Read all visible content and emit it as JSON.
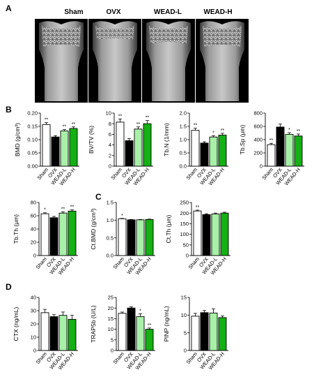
{
  "panels": {
    "A": "A",
    "B": "B",
    "C": "C",
    "D": "D"
  },
  "ct_labels": [
    "Sham",
    "OVX",
    "WEAD-L",
    "WEAD-H"
  ],
  "colors": {
    "Sham": "#ffffff",
    "OVX": "#000000",
    "WEAD-L": "#a8f0a8",
    "WEAD-H": "#14b014"
  },
  "chart_data": [
    {
      "id": "bmd",
      "panel": "B",
      "type": "bar",
      "ylabel": "BMD (g/cm³)",
      "categories": [
        "Sham",
        "OVX",
        "WEAD-L",
        "WEAD-H"
      ],
      "values": [
        0.157,
        0.11,
        0.133,
        0.142
      ],
      "errors": [
        0.007,
        0.005,
        0.005,
        0.006
      ],
      "ylim": [
        0,
        0.2
      ],
      "yticks": [
        "0.00",
        "0.05",
        "0.10",
        "0.15",
        "0.20"
      ],
      "stars": [
        "**",
        "",
        "**",
        "**"
      ]
    },
    {
      "id": "bvtv",
      "panel": "B",
      "type": "bar",
      "ylabel": "BV/TV (%)",
      "categories": [
        "Sham",
        "OVX",
        "WEAD-L",
        "WEAD-H"
      ],
      "values": [
        8.3,
        4.8,
        7.0,
        8.0
      ],
      "errors": [
        0.6,
        0.4,
        0.4,
        0.6
      ],
      "ylim": [
        0,
        10
      ],
      "yticks": [
        "0",
        "2",
        "4",
        "6",
        "8",
        "10"
      ],
      "stars": [
        "**",
        "",
        "**",
        "**"
      ]
    },
    {
      "id": "tbn",
      "panel": "B",
      "type": "bar",
      "ylabel": "Tb.N (1/mm)",
      "categories": [
        "Sham",
        "OVX",
        "WEAD-L",
        "WEAD-H"
      ],
      "values": [
        1.35,
        0.87,
        1.1,
        1.17
      ],
      "errors": [
        0.08,
        0.05,
        0.05,
        0.07
      ],
      "ylim": [
        0,
        2.0
      ],
      "yticks": [
        "0.0",
        "0.5",
        "1.0",
        "1.5",
        "2.0"
      ],
      "stars": [
        "**",
        "",
        "*",
        "**"
      ]
    },
    {
      "id": "tbsp",
      "panel": "B",
      "type": "bar",
      "ylabel": "Tb.Sp (μm)",
      "categories": [
        "Sham",
        "OVX",
        "WEAD-L",
        "WEAD-H"
      ],
      "values": [
        325,
        590,
        480,
        455
      ],
      "errors": [
        20,
        45,
        25,
        30
      ],
      "ylim": [
        0,
        800
      ],
      "yticks": [
        "0",
        "200",
        "400",
        "600",
        "800"
      ],
      "stars": [
        "**",
        "",
        "*",
        "**"
      ]
    },
    {
      "id": "tbth",
      "panel": "B",
      "type": "bar",
      "ylabel": "Tb.Th (μm)",
      "categories": [
        "Sham",
        "OVX",
        "WEAD-L",
        "WEAD-H"
      ],
      "values": [
        63,
        57,
        64,
        67
      ],
      "errors": [
        1.5,
        2.0,
        2.0,
        2.0
      ],
      "ylim": [
        0,
        80
      ],
      "yticks": [
        "0",
        "20",
        "40",
        "60",
        "80"
      ],
      "stars": [
        "*",
        "",
        "**",
        "**"
      ]
    },
    {
      "id": "ctbmd",
      "panel": "C",
      "type": "bar",
      "ylabel": "Ct.BMD (g/cm³)",
      "categories": [
        "Sham",
        "OVX",
        "WEAD-L",
        "WEAD-H"
      ],
      "values": [
        1.04,
        1.01,
        1.01,
        1.02
      ],
      "errors": [
        0.01,
        0.01,
        0.01,
        0.01
      ],
      "ylim": [
        0,
        1.5
      ],
      "yticks": [
        "0.0",
        "0.5",
        "1.0",
        "1.5"
      ],
      "stars": [
        "*",
        "",
        "",
        ""
      ]
    },
    {
      "id": "ctth",
      "panel": "C",
      "type": "bar",
      "ylabel": "Ct.Th (μm)",
      "categories": [
        "Sham",
        "OVX",
        "WEAD-L",
        "WEAD-H"
      ],
      "values": [
        210,
        193,
        196,
        200
      ],
      "errors": [
        4,
        4,
        4,
        4
      ],
      "ylim": [
        0,
        250
      ],
      "yticks": [
        "0",
        "50",
        "100",
        "150",
        "200",
        "250"
      ],
      "stars": [
        "**",
        "",
        "",
        ""
      ]
    },
    {
      "id": "ctx",
      "panel": "D",
      "type": "bar",
      "ylabel": "CTX (ng/mL)",
      "categories": [
        "Sham",
        "OVX",
        "WEAD-L",
        "WEAD-H"
      ],
      "values": [
        28.5,
        25.5,
        26.5,
        23.5
      ],
      "errors": [
        2.5,
        1.5,
        2.5,
        3.0
      ],
      "ylim": [
        0,
        40
      ],
      "yticks": [
        "0",
        "10",
        "20",
        "30",
        "40"
      ],
      "stars": [
        "",
        "",
        "",
        ""
      ]
    },
    {
      "id": "trap",
      "panel": "D",
      "type": "bar",
      "ylabel": "TRAP5b (U/L)",
      "categories": [
        "Sham",
        "OVX",
        "WEAD-L",
        "WEAD-H"
      ],
      "values": [
        17.5,
        20.0,
        16.0,
        10.0
      ],
      "errors": [
        0.6,
        0.6,
        1.3,
        0.6
      ],
      "ylim": [
        0,
        25
      ],
      "yticks": [
        "0",
        "5",
        "10",
        "15",
        "20",
        "25"
      ],
      "stars": [
        "",
        "",
        "*",
        "**"
      ]
    },
    {
      "id": "pinp",
      "panel": "D",
      "type": "bar",
      "ylabel": "PINP (ng/mL)",
      "categories": [
        "Sham",
        "OVX",
        "WEAD-L",
        "WEAD-H"
      ],
      "values": [
        9.7,
        10.7,
        10.6,
        9.3
      ],
      "errors": [
        0.8,
        0.6,
        1.2,
        0.5
      ],
      "ylim": [
        0,
        15
      ],
      "yticks": [
        "0",
        "5",
        "10",
        "15"
      ],
      "stars": [
        "",
        "",
        "",
        ""
      ]
    }
  ]
}
